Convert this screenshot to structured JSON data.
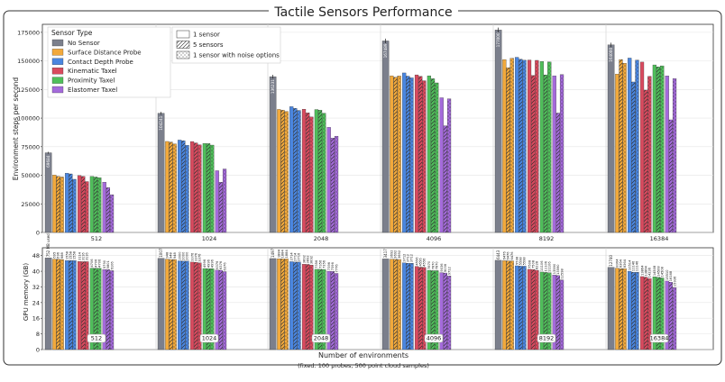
{
  "chart_data": {
    "type": "bar",
    "title": "Tactile Sensors Performance",
    "xlabel": "Number of environments",
    "xlabel_note": "(fixed: 100 probes, 500 point cloud samples)",
    "categories": [
      "512",
      "1024",
      "2048",
      "4096",
      "8192",
      "16384"
    ],
    "legend_placement": "top-left",
    "grid": true,
    "sensor_legend_title": "Sensor Type",
    "sensors": [
      {
        "name": "No Sensor",
        "color": "#7b7f8c"
      },
      {
        "name": "Surface Distance Probe",
        "color": "#f2a93b"
      },
      {
        "name": "Contact Depth Probe",
        "color": "#4a86e0"
      },
      {
        "name": "Kinematic Taxel",
        "color": "#d94a5e"
      },
      {
        "name": "Proximity Taxel",
        "color": "#4fbf5a"
      },
      {
        "name": "Elastomer Taxel",
        "color": "#a46adb"
      }
    ],
    "variants": [
      {
        "name": "1 sensor",
        "pattern": "none"
      },
      {
        "name": "5 sensors",
        "pattern": "hatch"
      },
      {
        "name": "1 sensor with noise options",
        "pattern": "dots"
      }
    ],
    "sps_panel": {
      "ylabel": "Environment steps per second",
      "ylim": [
        0,
        182000
      ],
      "yticks": [
        "0",
        "25000",
        "50000",
        "75000",
        "100000",
        "125000",
        "150000",
        "175000"
      ],
      "groups": [
        {
          "category": "512",
          "no_sensor": 69684,
          "bars": [
            [
              50200,
              49000,
              48500
            ],
            [
              51800,
              51200,
              46500
            ],
            [
              49800,
              49000,
              44500
            ],
            [
              49000,
              48500,
              47900
            ],
            [
              44000,
              39173,
              33000
            ]
          ]
        },
        {
          "category": "1024",
          "no_sensor": 104241,
          "bars": [
            [
              79600,
              79000,
              77400
            ],
            [
              80800,
              80200,
              76200
            ],
            [
              79500,
              78300,
              76600
            ],
            [
              77800,
              77700,
              76400
            ],
            [
              54000,
              43900,
              55500
            ]
          ]
        },
        {
          "category": "2048",
          "no_sensor": 136231,
          "bars": [
            [
              107600,
              106900,
              105800
            ],
            [
              110000,
              108500,
              106700
            ],
            [
              107800,
              104600,
              101000
            ],
            [
              107500,
              106900,
              104300
            ],
            [
              91900,
              82477,
              84200
            ]
          ]
        },
        {
          "category": "4096",
          "no_sensor": 167489,
          "bars": [
            [
              137000,
              135700,
              136800
            ],
            [
              139500,
              136700,
              135200
            ],
            [
              137800,
              136500,
              132700
            ],
            [
              137000,
              134400,
              130800
            ],
            [
              117800,
              93271,
              116900
            ]
          ]
        },
        {
          "category": "8192",
          "no_sensor": 177000,
          "bars": [
            [
              151200,
              144100,
              152300
            ],
            [
              153200,
              151500,
              150600
            ],
            [
              150800,
              137300,
              150500
            ],
            [
              149500,
              137800,
              149100
            ],
            [
              137000,
              104400,
              138000
            ]
          ]
        },
        {
          "category": "16384",
          "no_sensor": 164000,
          "bars": [
            [
              138500,
              151200,
              148000
            ],
            [
              152500,
              131600,
              150700
            ],
            [
              149000,
              124500,
              136500
            ],
            [
              146500,
              144800,
              145700
            ],
            [
              136900,
              98500,
              134500
            ]
          ]
        }
      ]
    },
    "memory_panel": {
      "ylabel": "GPU memory (GB)",
      "ylim": [
        0,
        52
      ],
      "yticks": [
        "0",
        "8",
        "16",
        "24",
        "32",
        "40",
        "48"
      ],
      "used_label": "752 MB used",
      "groups": [
        {
          "category": "512",
          "no_sensor": 46.8,
          "no_sensor_label": "752 MB used",
          "bars": [
            [
              46.2,
              46.1,
              46.0
            ],
            [
              45.5,
              45.5,
              45.5
            ],
            [
              45.0,
              44.9,
              44.9
            ],
            [
              41.6,
              41.5,
              41.5
            ],
            [
              40.9,
              40.8,
              40.3
            ]
          ]
        },
        {
          "category": "1024",
          "no_sensor": 46.6,
          "no_sensor_label": "1007",
          "bars": [
            [
              46.2,
              46.0,
              46.0
            ],
            [
              45.3,
              45.2,
              45.2
            ],
            [
              44.7,
              44.6,
              44.3
            ],
            [
              41.4,
              41.3,
              41.3
            ],
            [
              40.6,
              40.5,
              39.8
            ]
          ]
        },
        {
          "category": "2048",
          "no_sensor": 46.5,
          "no_sensor_label": "1497",
          "bars": [
            [
              46.4,
              46.3,
              46.3
            ],
            [
              44.9,
              44.7,
              44.7
            ],
            [
              43.6,
              43.5,
              43.2
            ],
            [
              41.0,
              41.0,
              40.9
            ],
            [
              40.0,
              39.9,
              38.9
            ]
          ]
        },
        {
          "category": "4096",
          "no_sensor": 46.3,
          "no_sensor_label": "3417",
          "bars": [
            [
              46.2,
              46.1,
              46.0
            ],
            [
              44.3,
              44.1,
              44.1
            ],
            [
              42.5,
              42.1,
              42.0
            ],
            [
              40.5,
              40.3,
              40.3
            ],
            [
              39.3,
              39.1,
              37.6
            ]
          ]
        },
        {
          "category": "8192",
          "no_sensor": 45.6,
          "no_sensor_label": "6443",
          "bars": [
            [
              45.4,
              45.3,
              45.3
            ],
            [
              42.8,
              42.6,
              42.6
            ],
            [
              41.0,
              40.9,
              40.5
            ],
            [
              39.6,
              39.4,
              39.2
            ],
            [
              38.1,
              37.8,
              35.6
            ]
          ]
        },
        {
          "category": "16384",
          "no_sensor": 42.0,
          "no_sensor_label": "12740",
          "bars": [
            [
              41.6,
              41.3,
              41.3
            ],
            [
              40.0,
              39.5,
              39.5
            ],
            [
              37.3,
              37.0,
              36.2
            ],
            [
              37.2,
              36.9,
              36.6
            ],
            [
              35.0,
              34.4,
              31.7
            ]
          ]
        }
      ],
      "cell_labels": [
        [
          "695",
          "696",
          "688",
          "1558",
          "1558",
          "1558",
          "3114",
          "3116",
          "3116",
          "4706",
          "4706",
          "4706",
          "5790",
          "5801",
          "6106"
        ],
        [
          "948",
          "948",
          "948",
          "2000",
          "2000",
          "2000",
          "3376",
          "3376",
          "3376",
          "4996",
          "4996",
          "4996",
          "6376",
          "6376",
          "6376"
        ],
        [
          "1884",
          "1884",
          "1884",
          "2714",
          "2714",
          "2716",
          "3892",
          "3892",
          "3892",
          "7356",
          "7356",
          "7356",
          "7396",
          "7396",
          "7776"
        ],
        [
          "3692",
          "3692",
          "3692",
          "3712",
          "3712",
          "3712",
          "4556",
          "4556",
          "4556",
          "7870",
          "7870",
          "7870",
          "9036",
          "9036",
          "9712"
        ],
        [
          "6476",
          "6476",
          "6476",
          "5598",
          "5598",
          "5598",
          "7508",
          "7508",
          "8228",
          "11106",
          "11106",
          "11106",
          "13590",
          "13590",
          "12598"
        ],
        [
          "8364",
          "8364",
          "8364",
          "10514",
          "11146",
          "11146",
          "13864",
          "13864",
          "14236",
          "14508",
          "14508",
          "14508",
          "15510",
          "16168",
          "15936"
        ]
      ]
    }
  }
}
